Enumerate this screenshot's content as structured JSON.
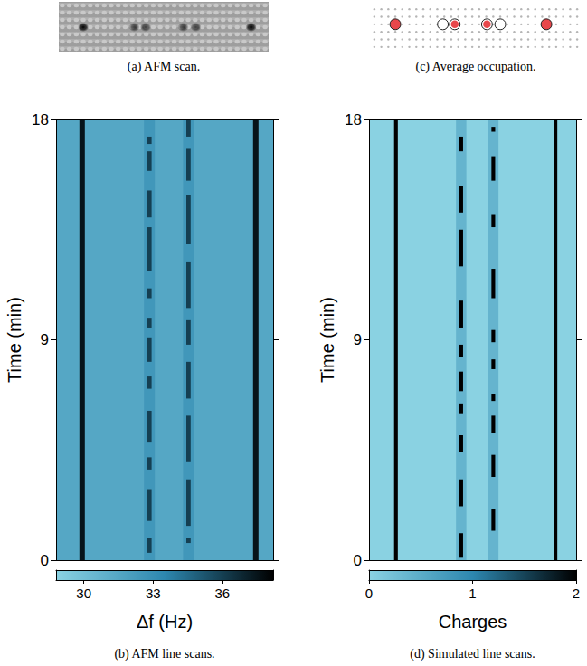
{
  "afm_scan": {
    "caption": "(a) AFM scan.",
    "lattice": {
      "columns": 30,
      "rows": 7
    },
    "spot_row": 3,
    "spots": [
      {
        "column": 3,
        "darkness": 1
      },
      {
        "column": 10.3,
        "darkness": 0.7
      },
      {
        "column": 11.9,
        "darkness": 0.7
      },
      {
        "column": 17.3,
        "darkness": 0.7
      },
      {
        "column": 19.1,
        "darkness": 0.7
      },
      {
        "column": 27,
        "darkness": 1
      }
    ]
  },
  "occupation": {
    "caption": "(c) Average occupation.",
    "lattice": {
      "columns": 30,
      "rows": 6
    },
    "site_row": 2,
    "sites": [
      {
        "column": 3,
        "occupation": 1
      },
      {
        "column": 9.8,
        "occupation": 0
      },
      {
        "column": 11.5,
        "occupation": 0.5
      },
      {
        "column": 16.1,
        "occupation": 0.5
      },
      {
        "column": 18,
        "occupation": 0
      },
      {
        "column": 24.6,
        "occupation": 1
      }
    ]
  },
  "chart_data": [
    {
      "type": "heatmap",
      "caption": "(b) AFM line scans.",
      "ylabel": "Time (min)",
      "xlim": [
        0,
        100
      ],
      "ylim": [
        0,
        18
      ],
      "yticks": [
        0,
        9,
        18
      ],
      "tick_labels": "y",
      "background": 31.5,
      "columns": [
        {
          "x": 12,
          "width": 2.5,
          "value": 37.5,
          "segments": [
            [
              0,
              18
            ]
          ]
        },
        {
          "x": 43,
          "width": 5,
          "value": 32.5,
          "segments": [
            [
              0,
              18
            ]
          ]
        },
        {
          "x": 61,
          "width": 5,
          "value": 32.5,
          "segments": [
            [
              0,
              18
            ]
          ]
        },
        {
          "x": 43,
          "width": 2,
          "value": 36,
          "segments": [
            [
              0.3,
              0.9
            ],
            [
              1.6,
              2.9
            ],
            [
              3.7,
              4.2
            ],
            [
              4.8,
              6.1
            ],
            [
              7.0,
              7.5
            ],
            [
              8.1,
              9.1
            ],
            [
              9.5,
              9.9
            ],
            [
              10.7,
              11.1
            ],
            [
              11.8,
              13.6
            ],
            [
              14.0,
              15.1
            ],
            [
              15.9,
              16.7
            ],
            [
              17.0,
              17.3
            ]
          ]
        },
        {
          "x": 61,
          "width": 2,
          "value": 36,
          "segments": [
            [
              0.7,
              0.9
            ],
            [
              1.4,
              3.3
            ],
            [
              4.0,
              5.9
            ],
            [
              6.6,
              8.1
            ],
            [
              8.8,
              9.8
            ],
            [
              10.3,
              12.2
            ],
            [
              12.9,
              14.9
            ],
            [
              15.5,
              16.8
            ],
            [
              17.3,
              18
            ]
          ]
        },
        {
          "x": 92,
          "width": 2.5,
          "value": 37.5,
          "segments": [
            [
              0,
              18
            ]
          ]
        }
      ],
      "colorbar": {
        "label": "Δf (Hz)",
        "range": [
          28.8,
          38.2
        ],
        "ticks": [
          30,
          33,
          36
        ]
      }
    },
    {
      "type": "heatmap",
      "caption": "(d) Simulated line scans.",
      "ylabel": "Time (min)",
      "xlim": [
        0,
        100
      ],
      "ylim": [
        0,
        18
      ],
      "yticks": [
        0,
        9,
        18
      ],
      "tick_labels": "y",
      "background": 0,
      "columns": [
        {
          "x": 13,
          "width": 1.8,
          "value": 2,
          "segments": [
            [
              0,
              18
            ]
          ]
        },
        {
          "x": 44.5,
          "width": 5,
          "value": 0.4,
          "segments": [
            [
              0,
              18
            ]
          ]
        },
        {
          "x": 60,
          "width": 5,
          "value": 0.4,
          "segments": [
            [
              0,
              18
            ]
          ]
        },
        {
          "x": 44.5,
          "width": 1.8,
          "value": 2,
          "segments": [
            [
              0.1,
              1.1
            ],
            [
              2.2,
              3.3
            ],
            [
              4.4,
              5.1
            ],
            [
              6.0,
              6.4
            ],
            [
              6.9,
              7.7
            ],
            [
              8.3,
              8.8
            ],
            [
              9.5,
              10.6
            ],
            [
              12.0,
              13.5
            ],
            [
              14.2,
              15.3
            ],
            [
              16.7,
              17.3
            ]
          ]
        },
        {
          "x": 60,
          "width": 1.8,
          "value": 2,
          "segments": [
            [
              1.2,
              2.1
            ],
            [
              3.4,
              4.3
            ],
            [
              5.2,
              5.9
            ],
            [
              6.5,
              6.8
            ],
            [
              7.8,
              8.2
            ],
            [
              8.9,
              9.4
            ],
            [
              10.7,
              11.9
            ],
            [
              13.6,
              14.1
            ],
            [
              15.5,
              16.5
            ],
            [
              17.5,
              17.7
            ]
          ]
        },
        {
          "x": 90,
          "width": 1.8,
          "value": 2,
          "segments": [
            [
              0,
              18
            ]
          ]
        }
      ],
      "colorbar": {
        "label": "Charges",
        "range": [
          0,
          2
        ],
        "ticks": [
          0,
          1,
          2
        ]
      }
    }
  ]
}
